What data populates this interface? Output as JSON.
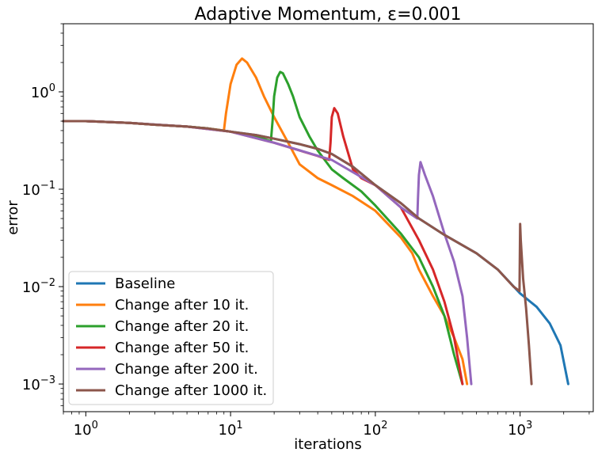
{
  "chart_data": {
    "type": "line",
    "title": "Adaptive Momentum, ε=0.001",
    "xlabel": "iterations",
    "ylabel": "error",
    "xscale": "log",
    "yscale": "log",
    "xlim": [
      0.7,
      3200
    ],
    "ylim": [
      0.00052,
      5.0
    ],
    "grid": false,
    "legend_position": "lower-left",
    "x_ticks": [
      {
        "value": 1,
        "base": "10",
        "exp": "0"
      },
      {
        "value": 10,
        "base": "10",
        "exp": "1"
      },
      {
        "value": 100,
        "base": "10",
        "exp": "2"
      },
      {
        "value": 1000,
        "base": "10",
        "exp": "3"
      }
    ],
    "y_ticks": [
      {
        "value": 0.001,
        "base": "10",
        "exp": "−3"
      },
      {
        "value": 0.01,
        "base": "10",
        "exp": "−2"
      },
      {
        "value": 0.1,
        "base": "10",
        "exp": "−1"
      },
      {
        "value": 1,
        "base": "10",
        "exp": "0"
      }
    ],
    "series": [
      {
        "name": "Baseline",
        "color": "#1f77b4",
        "x": [
          0.7,
          1,
          2,
          3,
          5,
          7,
          10,
          15,
          20,
          30,
          40,
          50,
          70,
          100,
          150,
          200,
          300,
          500,
          700,
          1000,
          1300,
          1600,
          1900,
          2150
        ],
        "y": [
          0.5,
          0.5,
          0.48,
          0.46,
          0.44,
          0.42,
          0.39,
          0.36,
          0.33,
          0.29,
          0.26,
          0.23,
          0.17,
          0.11,
          0.072,
          0.05,
          0.034,
          0.022,
          0.015,
          0.0085,
          0.0062,
          0.0042,
          0.0025,
          0.001
        ]
      },
      {
        "name": "Change after 10 it.",
        "color": "#ff7f0e",
        "x": [
          0.7,
          1,
          2,
          3,
          5,
          7,
          9,
          9.3,
          10,
          11,
          12,
          13,
          15,
          17,
          20,
          25,
          30,
          40,
          50,
          70,
          100,
          150,
          180,
          200,
          250,
          300,
          350,
          400,
          430
        ],
        "y": [
          0.5,
          0.5,
          0.48,
          0.46,
          0.44,
          0.42,
          0.4,
          0.6,
          1.2,
          1.9,
          2.2,
          2.0,
          1.4,
          0.9,
          0.55,
          0.3,
          0.18,
          0.13,
          0.11,
          0.085,
          0.06,
          0.032,
          0.022,
          0.015,
          0.008,
          0.005,
          0.003,
          0.0018,
          0.001
        ]
      },
      {
        "name": "Change after 20 it.",
        "color": "#2ca02c",
        "x": [
          0.7,
          1,
          2,
          3,
          5,
          7,
          10,
          15,
          19,
          19.5,
          20,
          21,
          22,
          23,
          25,
          27,
          30,
          35,
          40,
          50,
          60,
          80,
          100,
          150,
          200,
          250,
          300,
          350,
          400
        ],
        "y": [
          0.5,
          0.5,
          0.48,
          0.46,
          0.44,
          0.42,
          0.39,
          0.35,
          0.31,
          0.5,
          0.9,
          1.4,
          1.6,
          1.55,
          1.2,
          0.9,
          0.55,
          0.35,
          0.25,
          0.16,
          0.13,
          0.095,
          0.068,
          0.035,
          0.02,
          0.01,
          0.005,
          0.002,
          0.001
        ]
      },
      {
        "name": "Change after 50 it.",
        "color": "#d62728",
        "x": [
          0.7,
          1,
          2,
          3,
          5,
          10,
          20,
          30,
          40,
          48,
          49,
          50,
          52,
          55,
          60,
          70,
          80,
          100,
          150,
          200,
          250,
          300,
          350,
          400
        ],
        "y": [
          0.5,
          0.5,
          0.48,
          0.46,
          0.44,
          0.39,
          0.3,
          0.25,
          0.22,
          0.2,
          0.3,
          0.55,
          0.68,
          0.6,
          0.35,
          0.16,
          0.13,
          0.11,
          0.065,
          0.03,
          0.015,
          0.007,
          0.003,
          0.001
        ]
      },
      {
        "name": "Change after 200 it.",
        "color": "#9467bd",
        "x": [
          0.7,
          1,
          2,
          5,
          10,
          20,
          50,
          100,
          150,
          195,
          197,
          200,
          205,
          220,
          250,
          300,
          350,
          400,
          430,
          460
        ],
        "y": [
          0.5,
          0.5,
          0.48,
          0.44,
          0.39,
          0.3,
          0.2,
          0.11,
          0.065,
          0.05,
          0.08,
          0.14,
          0.19,
          0.14,
          0.085,
          0.035,
          0.018,
          0.008,
          0.003,
          0.001
        ]
      },
      {
        "name": "Change after 1000 it.",
        "color": "#8c564b",
        "x": [
          0.7,
          1,
          2,
          3,
          5,
          7,
          10,
          15,
          20,
          30,
          40,
          50,
          70,
          100,
          150,
          200,
          300,
          500,
          700,
          900,
          990,
          1000,
          1010,
          1050,
          1100,
          1150,
          1200
        ],
        "y": [
          0.5,
          0.5,
          0.48,
          0.46,
          0.44,
          0.42,
          0.39,
          0.36,
          0.33,
          0.29,
          0.26,
          0.23,
          0.17,
          0.11,
          0.072,
          0.05,
          0.034,
          0.022,
          0.015,
          0.01,
          0.009,
          0.044,
          0.03,
          0.012,
          0.006,
          0.0025,
          0.001
        ]
      }
    ]
  }
}
